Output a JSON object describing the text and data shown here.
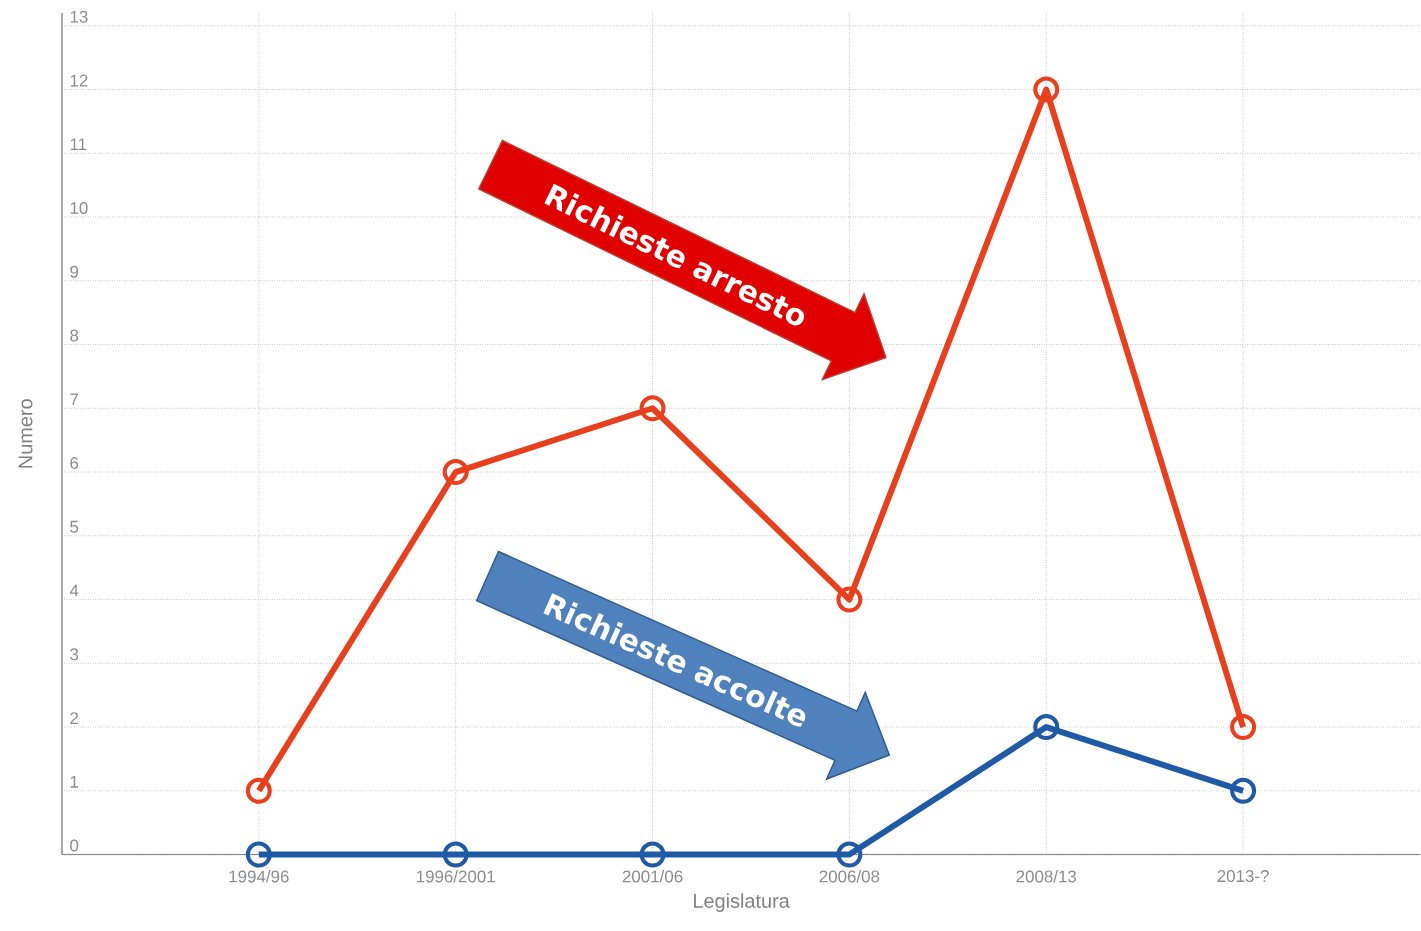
{
  "chart_data": {
    "type": "line",
    "xlabel": "Legislatura",
    "ylabel": "Numero",
    "categories": [
      "1994/96",
      "1996/2001",
      "2001/06",
      "2006/08",
      "2008/13",
      "2013-?"
    ],
    "series": [
      {
        "color": "#e8401c",
        "values": [
          1,
          6,
          7,
          4,
          12,
          2
        ]
      },
      {
        "color": "#1f5aa6",
        "values": [
          0,
          0,
          0,
          0,
          2,
          1
        ]
      }
    ],
    "ylim": [
      0,
      13.2
    ],
    "yticks": [
      0,
      1,
      2,
      3,
      4,
      5,
      6,
      7,
      8,
      9,
      10,
      11,
      12,
      13
    ],
    "grid": true,
    "marker": "circle",
    "line_style": "solid",
    "annotations": [
      "Richieste arresto",
      "Richieste accolte"
    ]
  }
}
